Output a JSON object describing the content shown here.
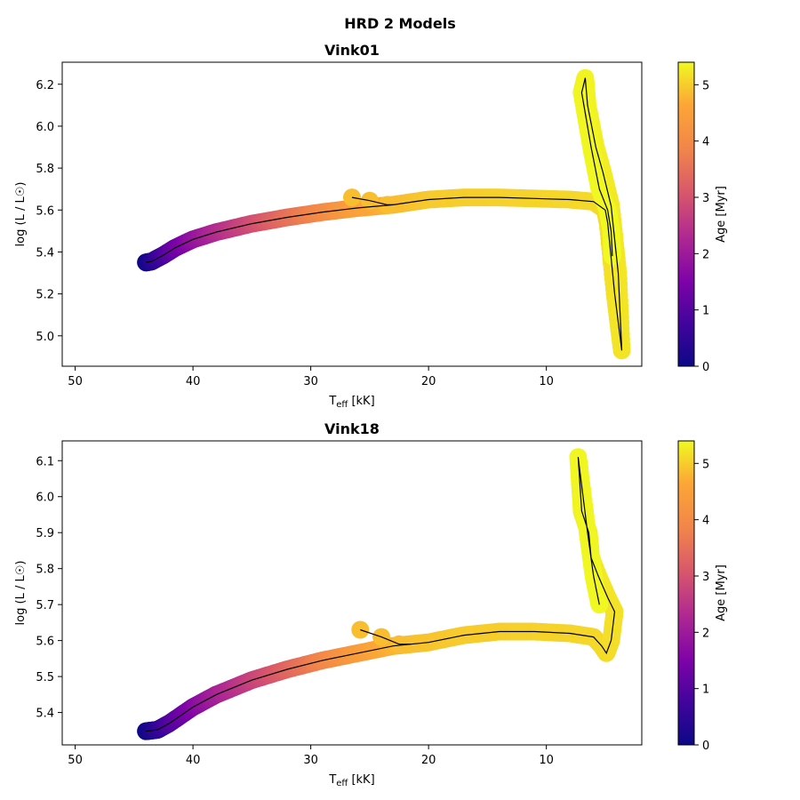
{
  "figure": {
    "suptitle": "HRD 2 Models"
  },
  "chart_data": [
    {
      "type": "scatter",
      "title": "Vink01",
      "xlabel": "T_eff [kK]",
      "xlabel_main": "T",
      "xlabel_sub": "eff",
      "xlabel_unit": " [kK]",
      "ylabel": "log (L / L☉)",
      "xlim": [
        51.1,
        1.9
      ],
      "ylim": [
        4.855,
        6.305
      ],
      "xticks": [
        50,
        40,
        30,
        20,
        10
      ],
      "yticks": [
        5.0,
        5.2,
        5.4,
        5.6,
        5.8,
        6.0,
        6.2
      ],
      "ytick_decimals": 1,
      "colorbar": {
        "label": "Age [Myr]",
        "range": [
          0,
          5.4
        ],
        "ticks": [
          0,
          1,
          2,
          3,
          4,
          5
        ],
        "colormap": "plasma"
      },
      "line_color": "#000000",
      "track": [
        [
          44.0,
          5.35,
          0.0
        ],
        [
          43.5,
          5.355,
          0.3
        ],
        [
          42.5,
          5.385,
          0.8
        ],
        [
          41.5,
          5.42,
          1.3
        ],
        [
          40.0,
          5.46,
          1.8
        ],
        [
          38.0,
          5.495,
          2.3
        ],
        [
          35.0,
          5.535,
          2.9
        ],
        [
          32.0,
          5.565,
          3.5
        ],
        [
          29.0,
          5.59,
          4.0
        ],
        [
          26.0,
          5.61,
          4.5
        ],
        [
          23.0,
          5.625,
          4.8
        ],
        [
          20.0,
          5.65,
          4.95
        ],
        [
          17.0,
          5.66,
          5.0
        ],
        [
          14.0,
          5.66,
          5.02
        ],
        [
          11.0,
          5.655,
          5.05
        ],
        [
          8.0,
          5.65,
          5.08
        ],
        [
          6.0,
          5.64,
          5.1
        ],
        [
          5.0,
          5.6,
          5.12
        ],
        [
          4.8,
          5.54,
          5.14
        ],
        [
          4.2,
          5.2,
          5.18
        ],
        [
          3.6,
          4.93,
          5.2
        ],
        [
          3.9,
          5.3,
          5.22
        ],
        [
          4.5,
          5.62,
          5.24
        ],
        [
          5.2,
          5.78,
          5.27
        ],
        [
          5.8,
          5.9,
          5.3
        ],
        [
          6.5,
          6.1,
          5.33
        ],
        [
          6.7,
          6.23,
          5.35
        ],
        [
          7.0,
          6.16,
          5.36
        ],
        [
          6.2,
          5.9,
          5.37
        ],
        [
          5.5,
          5.7,
          5.38
        ],
        [
          4.8,
          5.6,
          5.385
        ],
        [
          4.5,
          5.5,
          5.39
        ],
        [
          4.4,
          5.38,
          5.4
        ]
      ],
      "hook": [
        [
          23.5,
          5.625
        ],
        [
          25.0,
          5.645
        ],
        [
          26.5,
          5.66
        ]
      ]
    },
    {
      "type": "scatter",
      "title": "Vink18",
      "xlabel": "T_eff [kK]",
      "xlabel_main": "T",
      "xlabel_sub": "eff",
      "xlabel_unit": " [kK]",
      "ylabel": "log (L / L☉)",
      "xlim": [
        51.1,
        1.9
      ],
      "ylim": [
        5.31,
        6.155
      ],
      "xticks": [
        50,
        40,
        30,
        20,
        10
      ],
      "yticks": [
        5.4,
        5.5,
        5.6,
        5.7,
        5.8,
        5.9,
        6.0,
        6.1
      ],
      "ytick_decimals": 1,
      "colorbar": {
        "label": "Age [Myr]",
        "range": [
          0,
          5.4
        ],
        "ticks": [
          0,
          1,
          2,
          3,
          4,
          5
        ],
        "colormap": "plasma"
      },
      "line_color": "#000000",
      "track": [
        [
          44.0,
          5.348,
          0.0
        ],
        [
          43.0,
          5.352,
          0.4
        ],
        [
          42.0,
          5.37,
          0.9
        ],
        [
          40.0,
          5.415,
          1.6
        ],
        [
          38.0,
          5.45,
          2.1
        ],
        [
          35.0,
          5.49,
          2.7
        ],
        [
          32.0,
          5.52,
          3.3
        ],
        [
          29.0,
          5.545,
          3.9
        ],
        [
          26.0,
          5.565,
          4.4
        ],
        [
          23.0,
          5.585,
          4.75
        ],
        [
          21.5,
          5.59,
          4.85
        ],
        [
          20.0,
          5.595,
          4.9
        ],
        [
          17.0,
          5.615,
          4.97
        ],
        [
          14.0,
          5.625,
          5.0
        ],
        [
          11.0,
          5.625,
          5.03
        ],
        [
          8.0,
          5.62,
          5.06
        ],
        [
          6.0,
          5.61,
          5.08
        ],
        [
          5.3,
          5.585,
          5.1
        ],
        [
          4.9,
          5.565,
          5.12
        ],
        [
          4.5,
          5.6,
          5.14
        ],
        [
          4.2,
          5.68,
          5.17
        ],
        [
          4.8,
          5.72,
          5.2
        ],
        [
          5.6,
          5.78,
          5.24
        ],
        [
          6.2,
          5.83,
          5.27
        ],
        [
          6.4,
          5.9,
          5.3
        ],
        [
          7.0,
          5.96,
          5.33
        ],
        [
          7.3,
          6.11,
          5.36
        ],
        [
          6.5,
          5.9,
          5.37
        ],
        [
          6.0,
          5.78,
          5.38
        ],
        [
          5.5,
          5.7,
          5.385
        ]
      ],
      "hook": [
        [
          22.5,
          5.59
        ],
        [
          24.0,
          5.61
        ],
        [
          25.8,
          5.63
        ]
      ]
    }
  ]
}
